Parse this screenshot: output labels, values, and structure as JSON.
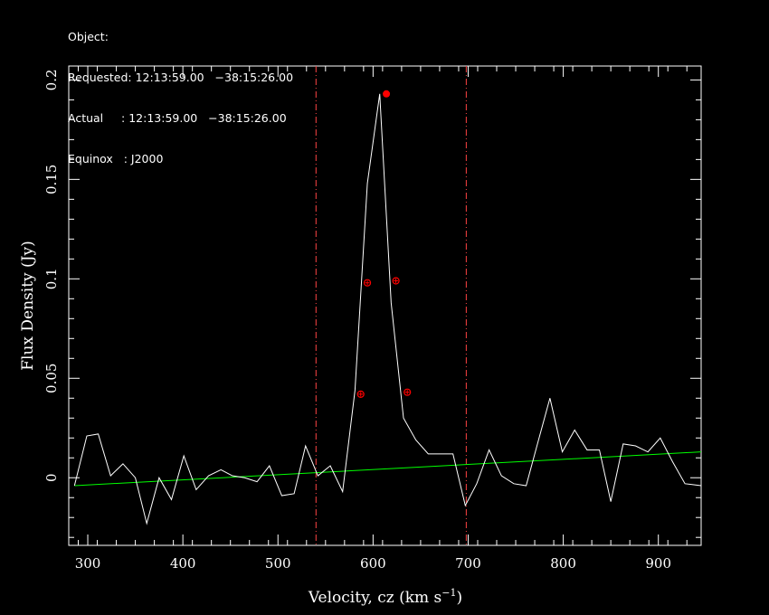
{
  "header": {
    "object_line": "Object:",
    "requested_line": "Requested: 12:13:59.00   −38:15:26.00",
    "actual_line": "Actual     : 12:13:59.00   −38:15:26.00",
    "equinox_line": "Equinox   : J2000"
  },
  "chart_data": {
    "type": "line",
    "xlabel_main": "Velocity, cz (km s",
    "xlabel_exp": "−1",
    "xlabel_close": ")",
    "ylabel": "Flux Density (Jy)",
    "xlim": [
      280,
      945
    ],
    "ylim": [
      -0.034,
      0.207
    ],
    "x_ticks": [
      300,
      400,
      500,
      600,
      700,
      800,
      900
    ],
    "x_tick_labels": [
      "300",
      "400",
      "500",
      "600",
      "700",
      "800",
      "900"
    ],
    "y_ticks": [
      0,
      0.05,
      0.1,
      0.15,
      0.2
    ],
    "y_tick_labels": [
      "0",
      "0.05",
      "0.1",
      "0.15",
      "0.2"
    ],
    "grid": false,
    "colors": {
      "background": "#000000",
      "spectrum": "#ffffff",
      "baseline": "#00ff00",
      "markers": "#ff0000",
      "vlines": "#ff4444"
    },
    "spectrum": {
      "x": [
        286,
        299,
        311,
        324,
        337,
        350,
        362,
        375,
        388,
        401,
        414,
        427,
        440,
        452,
        465,
        478,
        491,
        504,
        517,
        529,
        542,
        555,
        568,
        581,
        594,
        607,
        619,
        632,
        645,
        658,
        671,
        684,
        697,
        709,
        722,
        735,
        748,
        761,
        774,
        786,
        799,
        812,
        825,
        838,
        850,
        863,
        876,
        889,
        902,
        915,
        928,
        945
      ],
      "y": [
        -0.004,
        0.021,
        0.022,
        0.001,
        0.007,
        0.0,
        -0.023,
        0.0,
        -0.011,
        0.011,
        -0.006,
        0.001,
        0.004,
        0.001,
        0.0,
        -0.002,
        0.006,
        -0.009,
        -0.008,
        0.016,
        0.001,
        0.006,
        -0.007,
        0.044,
        0.148,
        0.193,
        0.088,
        0.03,
        0.019,
        0.012,
        0.012,
        0.012,
        -0.014,
        -0.003,
        0.014,
        0.001,
        -0.003,
        -0.004,
        0.019,
        0.04,
        0.013,
        0.024,
        0.014,
        0.014,
        -0.012,
        0.017,
        0.016,
        0.013,
        0.02,
        0.008,
        -0.003,
        -0.004
      ]
    },
    "baseline": {
      "x": [
        286,
        945
      ],
      "y": [
        -0.004,
        0.013
      ]
    },
    "peak_marker": {
      "x": 614,
      "y": 0.193
    },
    "width_markers": [
      {
        "x": 587,
        "y": 0.042
      },
      {
        "x": 594,
        "y": 0.098
      },
      {
        "x": 624,
        "y": 0.099
      },
      {
        "x": 636,
        "y": 0.043
      }
    ],
    "vlines": [
      540,
      698
    ]
  }
}
